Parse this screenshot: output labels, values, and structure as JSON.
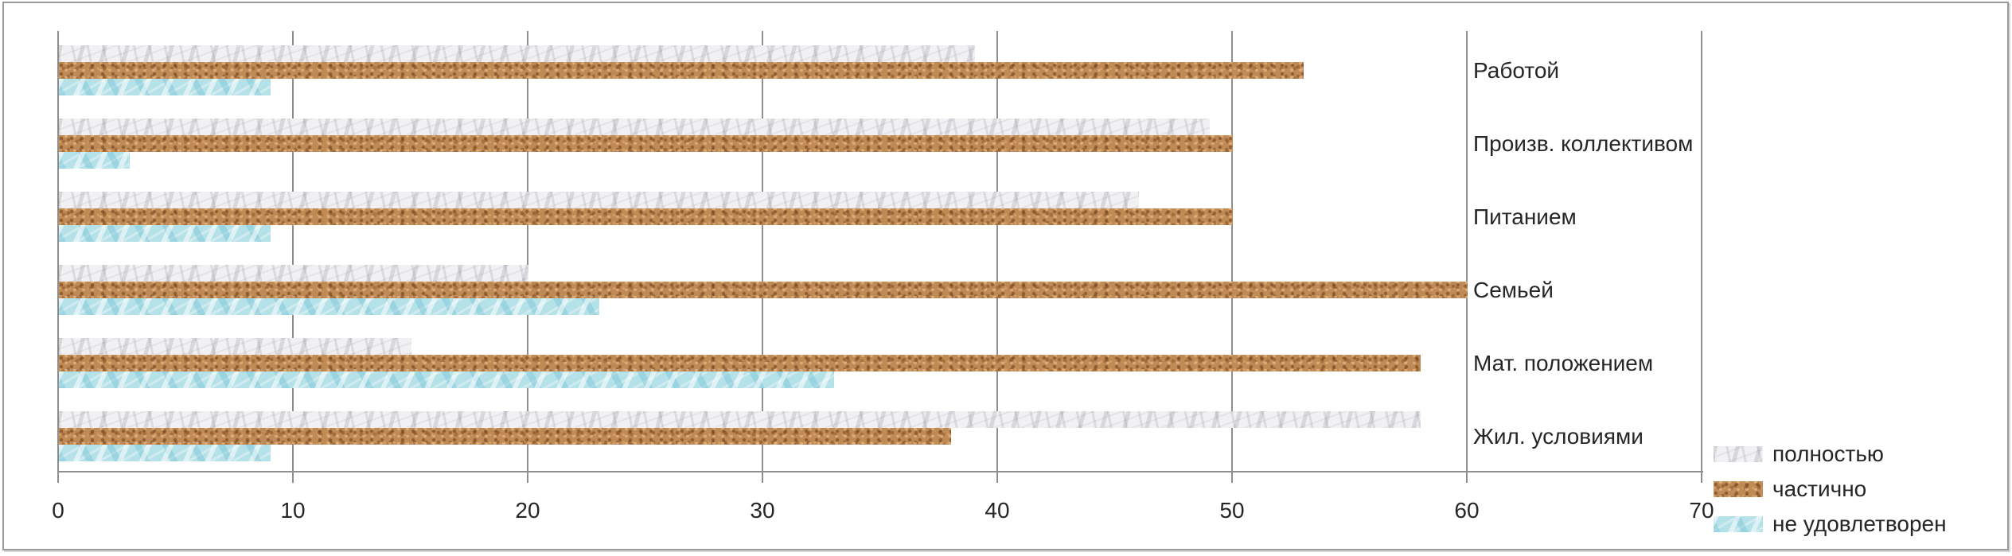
{
  "chart_data": {
    "type": "bar",
    "orientation": "horizontal",
    "title": "",
    "xlabel": "",
    "ylabel": "",
    "categories": [
      "Работой",
      "Произв. коллективом",
      "Питанием",
      "Семьей",
      "Мат. положением",
      "Жил. условиями"
    ],
    "series": [
      {
        "name": "полностью",
        "texture": "marble-white",
        "values": [
          39,
          49,
          46,
          20,
          15,
          58
        ]
      },
      {
        "name": "частично",
        "texture": "cork-brown",
        "values": [
          53,
          50,
          50,
          60,
          58,
          38
        ]
      },
      {
        "name": "не удовлетворен",
        "texture": "water-blue",
        "values": [
          9,
          3,
          9,
          23,
          33,
          9
        ]
      }
    ],
    "x_ticks": [
      0,
      10,
      20,
      30,
      40,
      50,
      60,
      70
    ],
    "xlim": [
      0,
      70
    ],
    "grid": "vertical",
    "legend_position": "bottom-right"
  },
  "colors": {
    "marble_base": "#f1f1f3",
    "cork_base": "#c08a55",
    "water_base": "#b5e1e8",
    "gridline": "#8e8e8e",
    "text": "#262626",
    "frame_border": "#9a9a9a"
  }
}
